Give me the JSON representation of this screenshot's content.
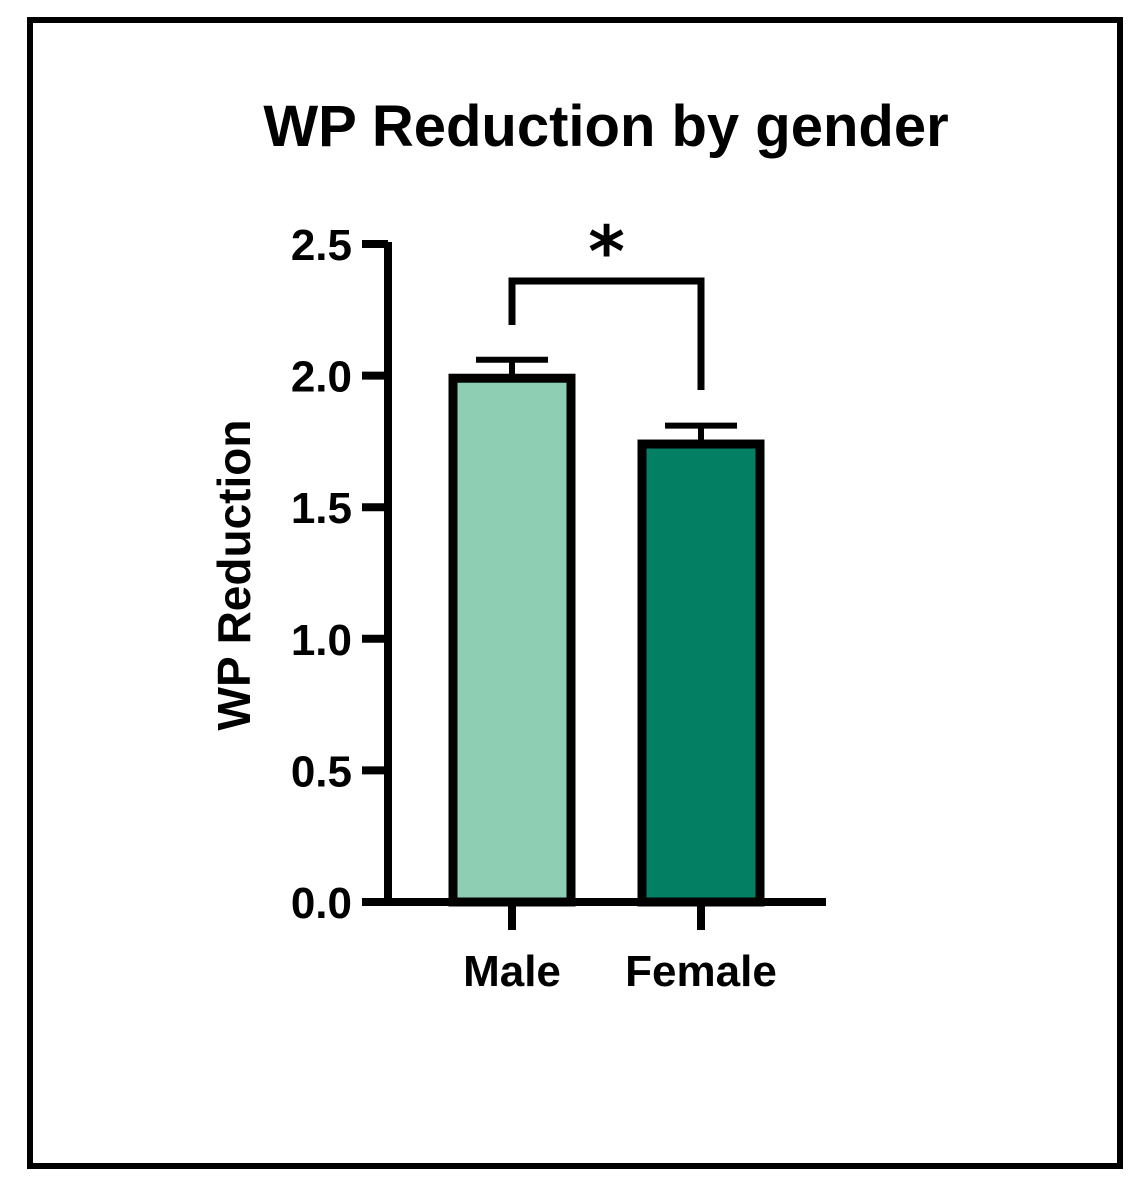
{
  "chart_data": {
    "type": "bar",
    "title": "WP Reduction by gender",
    "ylabel": "WP Reduction",
    "xlabel": "",
    "categories": [
      "Male",
      "Female"
    ],
    "values": [
      1.99,
      1.74
    ],
    "errors": [
      0.07,
      0.07
    ],
    "ylim": [
      0,
      2.5
    ],
    "yticks": [
      "0.0",
      "0.5",
      "1.0",
      "1.5",
      "2.0",
      "2.5"
    ],
    "bar_colors": [
      "#8ecfb4",
      "#037f64"
    ],
    "significance": {
      "between": [
        "Male",
        "Female"
      ],
      "label": "*"
    },
    "grid": false,
    "legend": "none"
  }
}
